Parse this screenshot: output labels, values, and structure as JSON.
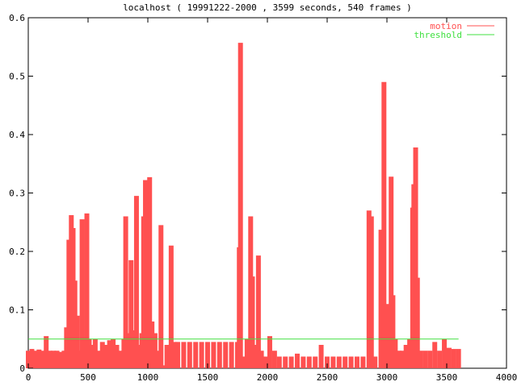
{
  "chart_data": {
    "type": "impulses",
    "title": "localhost ( 19991222-2000 , 3599 seconds, 540 frames )",
    "xlim": [
      0,
      4000
    ],
    "ylim": [
      0,
      0.6
    ],
    "xticks": [
      0,
      500,
      1000,
      1500,
      2000,
      2500,
      3000,
      3500,
      4000
    ],
    "yticks": [
      0,
      0.1,
      0.2,
      0.3,
      0.4,
      0.5,
      0.6
    ],
    "legend": "top-right",
    "series": [
      {
        "name": "motion",
        "color": "#ff5050",
        "style": "impulses",
        "x": [
          0,
          30,
          60,
          90,
          120,
          150,
          180,
          210,
          240,
          270,
          300,
          320,
          340,
          360,
          375,
          390,
          410,
          430,
          450,
          470,
          490,
          510,
          530,
          560,
          590,
          620,
          650,
          680,
          710,
          740,
          770,
          800,
          815,
          840,
          860,
          880,
          905,
          930,
          950,
          965,
          980,
          1000,
          1015,
          1035,
          1060,
          1090,
          1110,
          1130,
          1160,
          1180,
          1195,
          1220,
          1250,
          1300,
          1350,
          1400,
          1450,
          1500,
          1550,
          1600,
          1650,
          1700,
          1750,
          1765,
          1775,
          1800,
          1830,
          1860,
          1875,
          1900,
          1925,
          1950,
          1980,
          2020,
          2060,
          2100,
          2150,
          2200,
          2250,
          2300,
          2350,
          2400,
          2450,
          2500,
          2550,
          2600,
          2650,
          2700,
          2750,
          2800,
          2850,
          2870,
          2900,
          2950,
          2975,
          3000,
          3020,
          3035,
          3050,
          3070,
          3100,
          3130,
          3160,
          3190,
          3215,
          3225,
          3240,
          3255,
          3280,
          3320,
          3360,
          3400,
          3440,
          3480,
          3520,
          3560,
          3599
        ],
        "values": [
          0.03,
          0.033,
          0.03,
          0.032,
          0.03,
          0.055,
          0.03,
          0.03,
          0.03,
          0.028,
          0.03,
          0.07,
          0.22,
          0.262,
          0.24,
          0.15,
          0.09,
          0.03,
          0.255,
          0.05,
          0.265,
          0.05,
          0.04,
          0.05,
          0.03,
          0.045,
          0.04,
          0.048,
          0.05,
          0.04,
          0.03,
          0.05,
          0.26,
          0.06,
          0.185,
          0.065,
          0.295,
          0.04,
          0.06,
          0.26,
          0.322,
          0.15,
          0.327,
          0.08,
          0.06,
          0.03,
          0.245,
          0.005,
          0.04,
          0.0,
          0.21,
          0.045,
          0.045,
          0.045,
          0.045,
          0.045,
          0.045,
          0.045,
          0.045,
          0.045,
          0.045,
          0.045,
          0.045,
          0.207,
          0.557,
          0.02,
          0.05,
          0.26,
          0.157,
          0.04,
          0.193,
          0.03,
          0.02,
          0.055,
          0.03,
          0.02,
          0.02,
          0.02,
          0.025,
          0.02,
          0.02,
          0.02,
          0.04,
          0.02,
          0.02,
          0.02,
          0.02,
          0.02,
          0.02,
          0.02,
          0.27,
          0.26,
          0.02,
          0.237,
          0.49,
          0.11,
          0.1,
          0.328,
          0.125,
          0.05,
          0.03,
          0.03,
          0.04,
          0.05,
          0.275,
          0.315,
          0.378,
          0.155,
          0.03,
          0.03,
          0.03,
          0.045,
          0.03,
          0.05,
          0.035,
          0.033,
          0.033
        ]
      },
      {
        "name": "threshold",
        "color": "#40e040",
        "style": "line",
        "x": [
          0,
          3599
        ],
        "values": [
          0.05,
          0.05
        ]
      }
    ]
  }
}
